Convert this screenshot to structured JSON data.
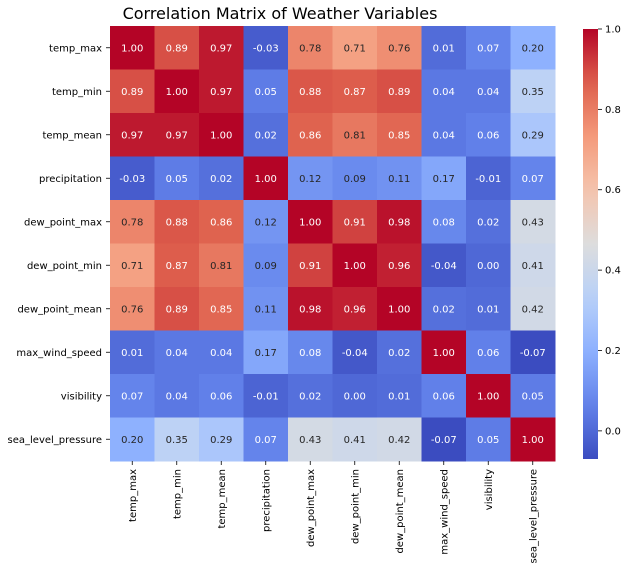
{
  "chart_data": {
    "type": "heatmap",
    "title": "Correlation Matrix of Weather Variables",
    "xlabel": "",
    "ylabel": "",
    "variables": [
      "temp_max",
      "temp_min",
      "temp_mean",
      "precipitation",
      "dew_point_max",
      "dew_point_min",
      "dew_point_mean",
      "max_wind_speed",
      "visibility",
      "sea_level_pressure"
    ],
    "matrix": [
      [
        1.0,
        0.89,
        0.97,
        -0.03,
        0.78,
        0.71,
        0.76,
        0.01,
        0.07,
        0.2
      ],
      [
        0.89,
        1.0,
        0.97,
        0.05,
        0.88,
        0.87,
        0.89,
        0.04,
        0.04,
        0.35
      ],
      [
        0.97,
        0.97,
        1.0,
        0.02,
        0.86,
        0.81,
        0.85,
        0.04,
        0.06,
        0.29
      ],
      [
        -0.03,
        0.05,
        0.02,
        1.0,
        0.12,
        0.09,
        0.11,
        0.17,
        -0.01,
        0.07
      ],
      [
        0.78,
        0.88,
        0.86,
        0.12,
        1.0,
        0.91,
        0.98,
        0.08,
        0.02,
        0.43
      ],
      [
        0.71,
        0.87,
        0.81,
        0.09,
        0.91,
        1.0,
        0.96,
        -0.04,
        0.0,
        0.41
      ],
      [
        0.76,
        0.89,
        0.85,
        0.11,
        0.98,
        0.96,
        1.0,
        0.02,
        0.01,
        0.42
      ],
      [
        0.01,
        0.04,
        0.04,
        0.17,
        0.08,
        -0.04,
        0.02,
        1.0,
        0.06,
        -0.07
      ],
      [
        0.07,
        0.04,
        0.06,
        -0.01,
        0.02,
        0.0,
        0.01,
        0.06,
        1.0,
        0.05
      ],
      [
        0.2,
        0.35,
        0.29,
        0.07,
        0.43,
        0.41,
        0.42,
        -0.07,
        0.05,
        1.0
      ]
    ],
    "colormap": "coolwarm",
    "color_range": [
      -0.07,
      1.0
    ],
    "colorbar_ticks": [
      0.0,
      0.2,
      0.4,
      0.6,
      0.8,
      1.0
    ],
    "colorbar_tick_labels": [
      "0.0",
      "0.2",
      "0.4",
      "0.6",
      "0.8",
      "1.0"
    ],
    "annotation_format": "2 decimals",
    "legend": "colorbar-right"
  }
}
